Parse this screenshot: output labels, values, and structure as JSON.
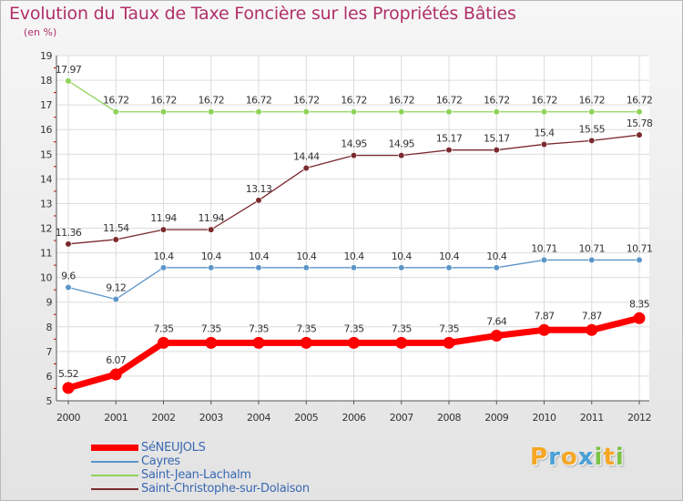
{
  "title": "Evolution du Taux de Taxe Foncière sur les Propriétés Bâties",
  "subtitle": "(en %)",
  "logo": {
    "text": "Proxiti",
    "letters": [
      "P",
      "r",
      "o",
      "x",
      "i",
      "t",
      "i"
    ],
    "colors": [
      "#f5a623",
      "#4aa0d5",
      "#f5a623",
      "#4aa0d5",
      "#7cc243",
      "#f5a623",
      "#7cc243"
    ]
  },
  "chart_data": {
    "type": "line",
    "title": "Evolution du Taux de Taxe Foncière sur les Propriétés Bâties",
    "ylabel": "(en %)",
    "ylim": [
      5,
      19
    ],
    "yticks": [
      5,
      6,
      7,
      8,
      9,
      10,
      11,
      12,
      13,
      14,
      15,
      16,
      17,
      18,
      19
    ],
    "x": [
      "2000",
      "2001",
      "2002",
      "2003",
      "2004",
      "2005",
      "2006",
      "2007",
      "2008",
      "2009",
      "2010",
      "2011",
      "2012"
    ],
    "grid": true,
    "legend_position": "bottom-left",
    "series": [
      {
        "name": "SéNEUJOLS",
        "color": "#ff0000",
        "width": 7,
        "values": [
          5.52,
          6.07,
          7.35,
          7.35,
          7.35,
          7.35,
          7.35,
          7.35,
          7.35,
          7.64,
          7.87,
          7.87,
          8.35
        ],
        "labels": [
          "5.52",
          "6.07",
          "7.35",
          "7.35",
          "7.35",
          "7.35",
          "7.35",
          "7.35",
          "7.35",
          "7.64",
          "7.87",
          "7.87",
          "8.35"
        ]
      },
      {
        "name": "Cayres",
        "color": "#5b95c8",
        "width": 1.3,
        "values": [
          9.6,
          9.12,
          10.4,
          10.4,
          10.4,
          10.4,
          10.4,
          10.4,
          10.4,
          10.4,
          10.71,
          10.71,
          10.71
        ],
        "labels": [
          "9.6",
          "9.12",
          "10.4",
          "10.4",
          "10.4",
          "10.4",
          "10.4",
          "10.4",
          "10.4",
          "10.4",
          "10.71",
          "10.71",
          "10.71"
        ]
      },
      {
        "name": "Saint-Jean-Lachalm",
        "color": "#8ed358",
        "width": 1.3,
        "values": [
          17.97,
          16.72,
          16.72,
          16.72,
          16.72,
          16.72,
          16.72,
          16.72,
          16.72,
          16.72,
          16.72,
          16.72,
          16.72
        ],
        "labels": [
          "17.97",
          "16.72",
          "16.72",
          "16.72",
          "16.72",
          "16.72",
          "16.72",
          "16.72",
          "16.72",
          "16.72",
          "16.72",
          "16.72",
          "16.72"
        ]
      },
      {
        "name": "Saint-Christophe-sur-Dolaison",
        "color": "#7b2a2f",
        "width": 1.3,
        "values": [
          11.36,
          11.54,
          11.94,
          11.94,
          13.13,
          14.44,
          14.95,
          14.95,
          15.17,
          15.17,
          15.4,
          15.55,
          15.78
        ],
        "labels": [
          "11.36",
          "11.54",
          "11.94",
          "11.94",
          "13.13",
          "14.44",
          "14.95",
          "14.95",
          "15.17",
          "15.17",
          "15.4",
          "15.55",
          "15.78"
        ]
      }
    ]
  }
}
